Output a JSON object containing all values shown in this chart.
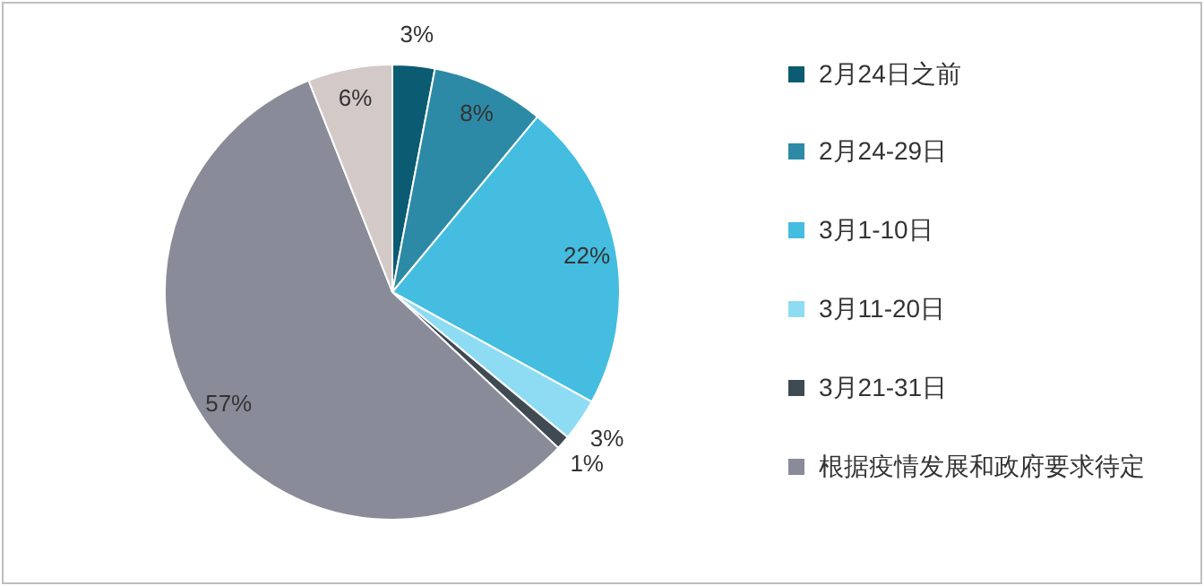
{
  "chart_data": {
    "type": "pie",
    "categories": [
      "2月24日之前",
      "2月24-29日",
      "3月1-10日",
      "3月11-20日",
      "3月21-31日",
      "根据疫情发展和政府要求待定",
      null
    ],
    "values": [
      3,
      8,
      22,
      3,
      1,
      57,
      6
    ],
    "colors": [
      "#0b5b73",
      "#2d8aa6",
      "#44bde0",
      "#8edcf3",
      "#3f4a52",
      "#898b98",
      "#d3c9c6"
    ],
    "value_labels": [
      "3%",
      "8%",
      "22%",
      "3%",
      "1%",
      "57%",
      "6%"
    ],
    "legend": "right"
  }
}
